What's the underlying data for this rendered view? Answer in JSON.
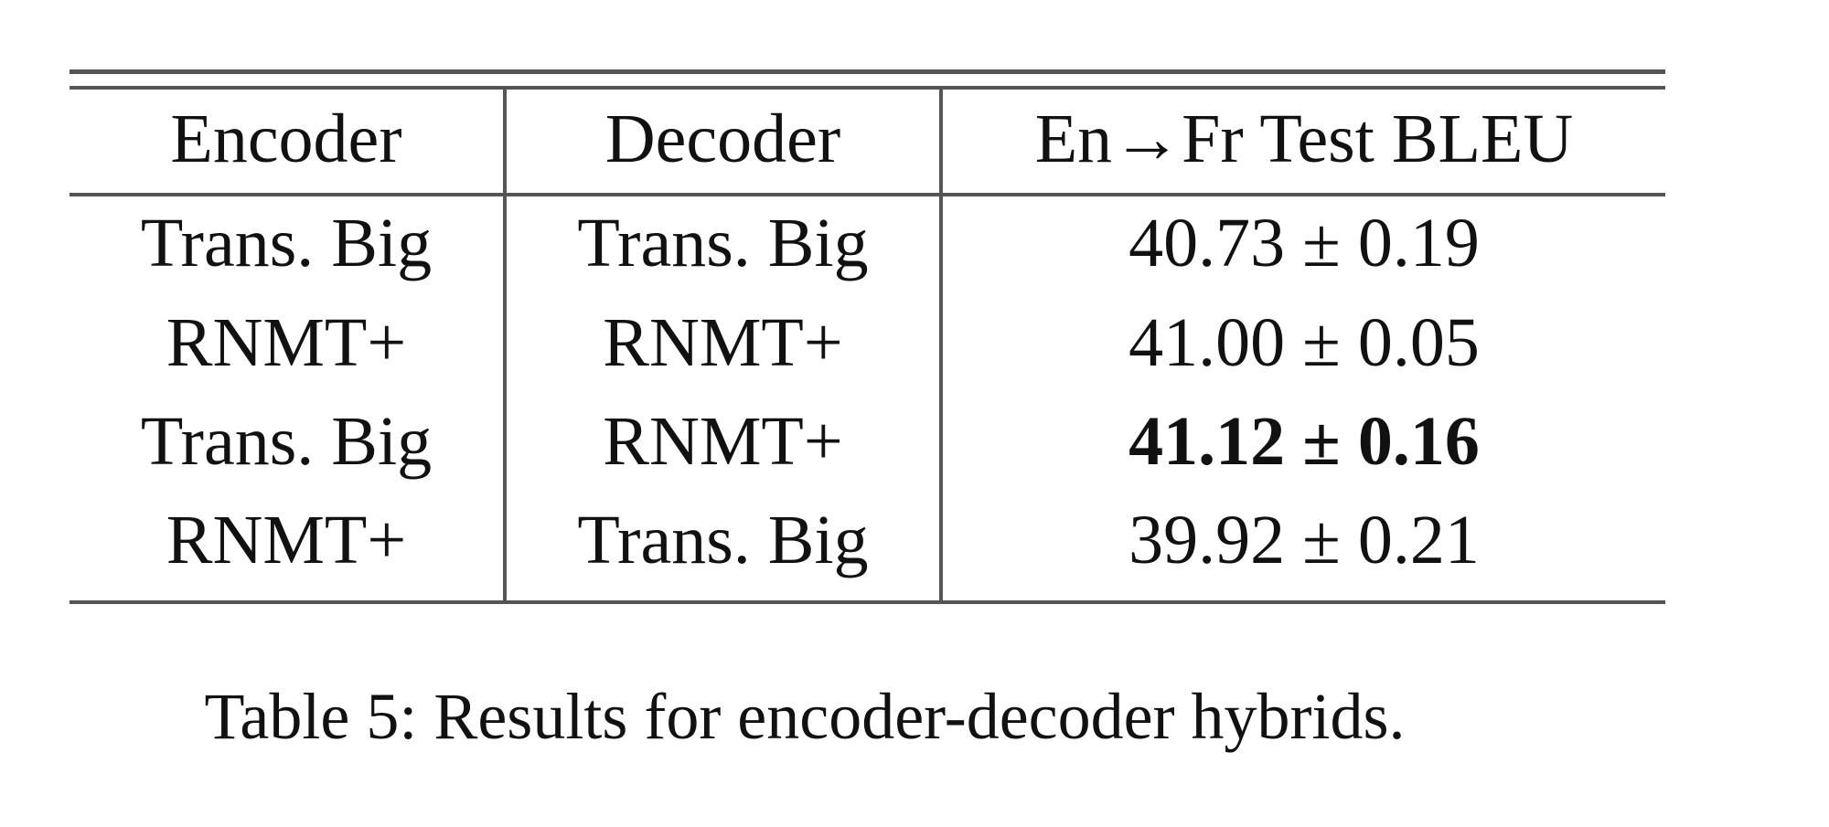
{
  "table": {
    "headers": [
      "Encoder",
      "Decoder",
      "En→Fr Test BLEU"
    ],
    "rows": [
      {
        "encoder": "Trans. Big",
        "decoder": "Trans. Big",
        "bleu": "40.73 ± 0.19",
        "bold": false
      },
      {
        "encoder": "RNMT+",
        "decoder": "RNMT+",
        "bleu": "41.00 ± 0.05",
        "bold": false
      },
      {
        "encoder": "Trans. Big",
        "decoder": "RNMT+",
        "bleu": "41.12 ± 0.16",
        "bold": true
      },
      {
        "encoder": "RNMT+",
        "decoder": "Trans. Big",
        "bleu": "39.92 ± 0.21",
        "bold": false
      }
    ]
  },
  "caption": "Table 5: Results for encoder-decoder hybrids."
}
